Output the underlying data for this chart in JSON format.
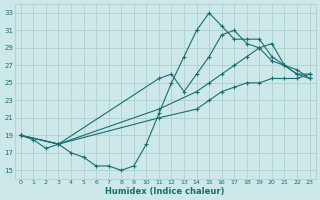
{
  "xlabel": "Humidex (Indice chaleur)",
  "bg_color": "#cce8e8",
  "grid_color": "#aacccc",
  "line_color": "#1a6e6e",
  "xlim": [
    -0.5,
    23.5
  ],
  "ylim": [
    14,
    34
  ],
  "xticks": [
    0,
    1,
    2,
    3,
    4,
    5,
    6,
    7,
    8,
    9,
    10,
    11,
    12,
    13,
    14,
    15,
    16,
    17,
    18,
    19,
    20,
    21,
    22,
    23
  ],
  "yticks": [
    15,
    17,
    19,
    21,
    23,
    25,
    27,
    29,
    31,
    33
  ],
  "line1_x": [
    0,
    1,
    2,
    3,
    4,
    5,
    6,
    7,
    8,
    9,
    10,
    11,
    12,
    13,
    14,
    15,
    16,
    17,
    18,
    19,
    20,
    21,
    22,
    23
  ],
  "line1_y": [
    19,
    18.5,
    17.5,
    18,
    17,
    16.5,
    15.5,
    15.5,
    15,
    15.5,
    18,
    21.5,
    25,
    28,
    31,
    33,
    31.5,
    30,
    30,
    30,
    28,
    27,
    26,
    25.5
  ],
  "line2_x": [
    0,
    3,
    11,
    12,
    13,
    14,
    15,
    16,
    17,
    18,
    19,
    20,
    21,
    22,
    23
  ],
  "line2_y": [
    19,
    18,
    25.5,
    26,
    24,
    26,
    28,
    30.5,
    31,
    29.5,
    29,
    27.5,
    27,
    26.5,
    25.5
  ],
  "line3_x": [
    0,
    3,
    11,
    14,
    15,
    16,
    17,
    18,
    19,
    20,
    21,
    22,
    23
  ],
  "line3_y": [
    19,
    18,
    22,
    24,
    25,
    26,
    27,
    28,
    29,
    29.5,
    27,
    26,
    26
  ],
  "line4_x": [
    0,
    3,
    11,
    14,
    15,
    16,
    17,
    18,
    19,
    20,
    21,
    22,
    23
  ],
  "line4_y": [
    19,
    18,
    21,
    22,
    23,
    24,
    24.5,
    25,
    25,
    25.5,
    25.5,
    25.5,
    26
  ]
}
